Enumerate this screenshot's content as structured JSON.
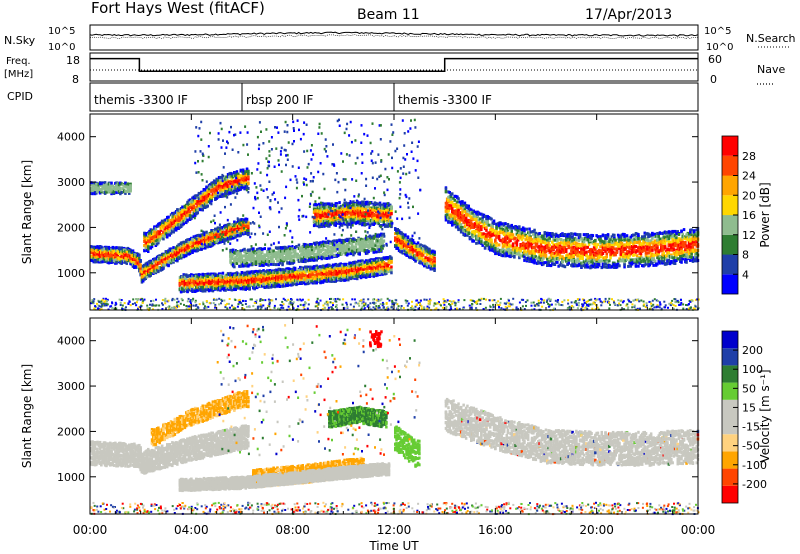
{
  "header": {
    "title": "Fort Hays West (fitACF)",
    "beam": "Beam 11",
    "date": "17/Apr/2013"
  },
  "left_labels": {
    "nsky": "N.Sky",
    "freq": "Freq.",
    "freq_unit": "[MHz]",
    "cpid": "CPID"
  },
  "right_labels": {
    "nsearch": "N.Search",
    "nave": "Nave"
  },
  "cpid_segments": [
    {
      "label": "themis -3300 IF",
      "start_hour": 0
    },
    {
      "label": "rbsp 200 IF",
      "start_hour": 6
    },
    {
      "label": "themis -3300 IF",
      "start_hour": 12
    }
  ],
  "colors": {
    "power_scale": [
      "#0000ff",
      "#1f3fa8",
      "#2e7d32",
      "#8fbc8f",
      "#ffd700",
      "#ffa500",
      "#ff4500",
      "#ff0000"
    ],
    "velocity_scale": [
      "#ff0000",
      "#ff4500",
      "#ffa500",
      "#ffd27f",
      "#c8c8c0",
      "#c8c8c0",
      "#66cc33",
      "#2e7d32",
      "#1f3fa8",
      "#0000cc"
    ],
    "ground_scatter": "#c8c8c0"
  },
  "chart_data": [
    {
      "type": "line",
      "title": "",
      "ylabel": "N.Sky",
      "yticks": [
        "10^5",
        "10^0"
      ],
      "right_yticks": [
        "10^5",
        "10^0"
      ],
      "right_label": "N.Search",
      "series": [
        {
          "name": "N.Sky",
          "x": [
            0,
            2,
            4,
            6,
            8,
            10,
            12,
            14,
            16,
            18,
            20,
            22,
            24
          ],
          "values": [
            3200,
            2800,
            3500,
            6000,
            9000,
            12000,
            8000,
            5000,
            3500,
            3000,
            2800,
            2600,
            2500
          ]
        }
      ],
      "xlim": [
        0,
        24
      ]
    },
    {
      "type": "line",
      "ylabel": "Freq. [MHz]",
      "yticks": [
        8,
        18
      ],
      "ylim": [
        8,
        18
      ],
      "right_yticks": [
        0,
        60
      ],
      "right_label": "Nave",
      "series": [
        {
          "name": "Freq.",
          "x": [
            0,
            1.95,
            1.95,
            14.0,
            14.0,
            24
          ],
          "values": [
            16.5,
            16.5,
            11.2,
            11.2,
            16.5,
            16.5
          ]
        }
      ],
      "xlim": [
        0,
        24
      ]
    },
    {
      "type": "heatmap",
      "ylabel": "Slant Range [km]",
      "yticks": [
        1000,
        2000,
        3000,
        4000
      ],
      "ylim": [
        180,
        4500
      ],
      "colorbar_label": "Power [dB]",
      "colorbar_ticks": [
        "4",
        "8",
        "12",
        "16",
        "20",
        "24",
        "28"
      ],
      "bands": [
        {
          "name": "main",
          "x": [
            0,
            1.5,
            1.9,
            2.0,
            3,
            4,
            5,
            6
          ],
          "center": [
            1450,
            1400,
            1250,
            1000,
            1350,
            1650,
            1850,
            2050
          ]
        },
        {
          "name": "upper",
          "x": [
            2.2,
            3.5,
            5,
            6
          ],
          "center": [
            1700,
            2250,
            2900,
            3100
          ]
        },
        {
          "name": "sporadic-top",
          "x": [
            0,
            1.5
          ],
          "center": [
            2900,
            2900
          ]
        },
        {
          "name": "low",
          "x": [
            3.5,
            6,
            8,
            10,
            11.8
          ],
          "center": [
            800,
            850,
            950,
            1050,
            1200
          ]
        },
        {
          "name": "mid",
          "x": [
            5.5,
            7.5,
            9.5,
            11.5
          ],
          "center": [
            1350,
            1400,
            1550,
            1700
          ]
        },
        {
          "name": "high",
          "x": [
            9,
            10.5,
            11.8
          ],
          "center": [
            2300,
            2350,
            2300
          ]
        },
        {
          "name": "recovery",
          "x": [
            12,
            12.8,
            13.5
          ],
          "center": [
            1800,
            1500,
            1300
          ]
        },
        {
          "name": "afternoon",
          "x": [
            14,
            15,
            16,
            18,
            20,
            22,
            24
          ],
          "center": [
            2550,
            2100,
            1800,
            1550,
            1500,
            1550,
            1650
          ]
        }
      ],
      "xlim": [
        0,
        24
      ]
    },
    {
      "type": "heatmap",
      "ylabel": "Slant Range [km]",
      "yticks": [
        1000,
        2000,
        3000,
        4000
      ],
      "ylim": [
        180,
        4500
      ],
      "colorbar_label": "Velocity [m s⁻¹]",
      "colorbar_ticks": [
        "200",
        "100",
        "50",
        "15",
        "-15",
        "-50",
        "-100",
        "-200"
      ],
      "bands": [
        {
          "name": "ground",
          "x": [
            0,
            1.9,
            2.0,
            4,
            6
          ],
          "center": [
            1550,
            1500,
            1350,
            1650,
            1900
          ]
        },
        {
          "name": "orange-flow",
          "x": [
            2.5,
            4,
            6
          ],
          "center": [
            1900,
            2350,
            2750
          ]
        },
        {
          "name": "orange-low",
          "x": [
            6.5,
            8.5,
            10.5
          ],
          "center": [
            1000,
            1100,
            1250
          ]
        },
        {
          "name": "ground-low",
          "x": [
            3.5,
            6,
            11.5
          ],
          "center": [
            850,
            900,
            1200
          ]
        },
        {
          "name": "green-high",
          "x": [
            9.5,
            10.5,
            11.6
          ],
          "center": [
            2300,
            2400,
            2300
          ]
        },
        {
          "name": "green-recovery",
          "x": [
            12,
            12.8
          ],
          "center": [
            1900,
            1550
          ]
        },
        {
          "name": "ground-afternoon",
          "x": [
            14,
            16,
            18,
            20,
            22,
            24
          ],
          "center": [
            2400,
            2000,
            1700,
            1650,
            1650,
            1700
          ]
        }
      ],
      "xlim": [
        0,
        24
      ]
    }
  ],
  "xaxis": {
    "ticks": [
      "00:00",
      "04:00",
      "08:00",
      "12:00",
      "16:00",
      "20:00",
      "00:00"
    ],
    "label": "Time UT"
  }
}
